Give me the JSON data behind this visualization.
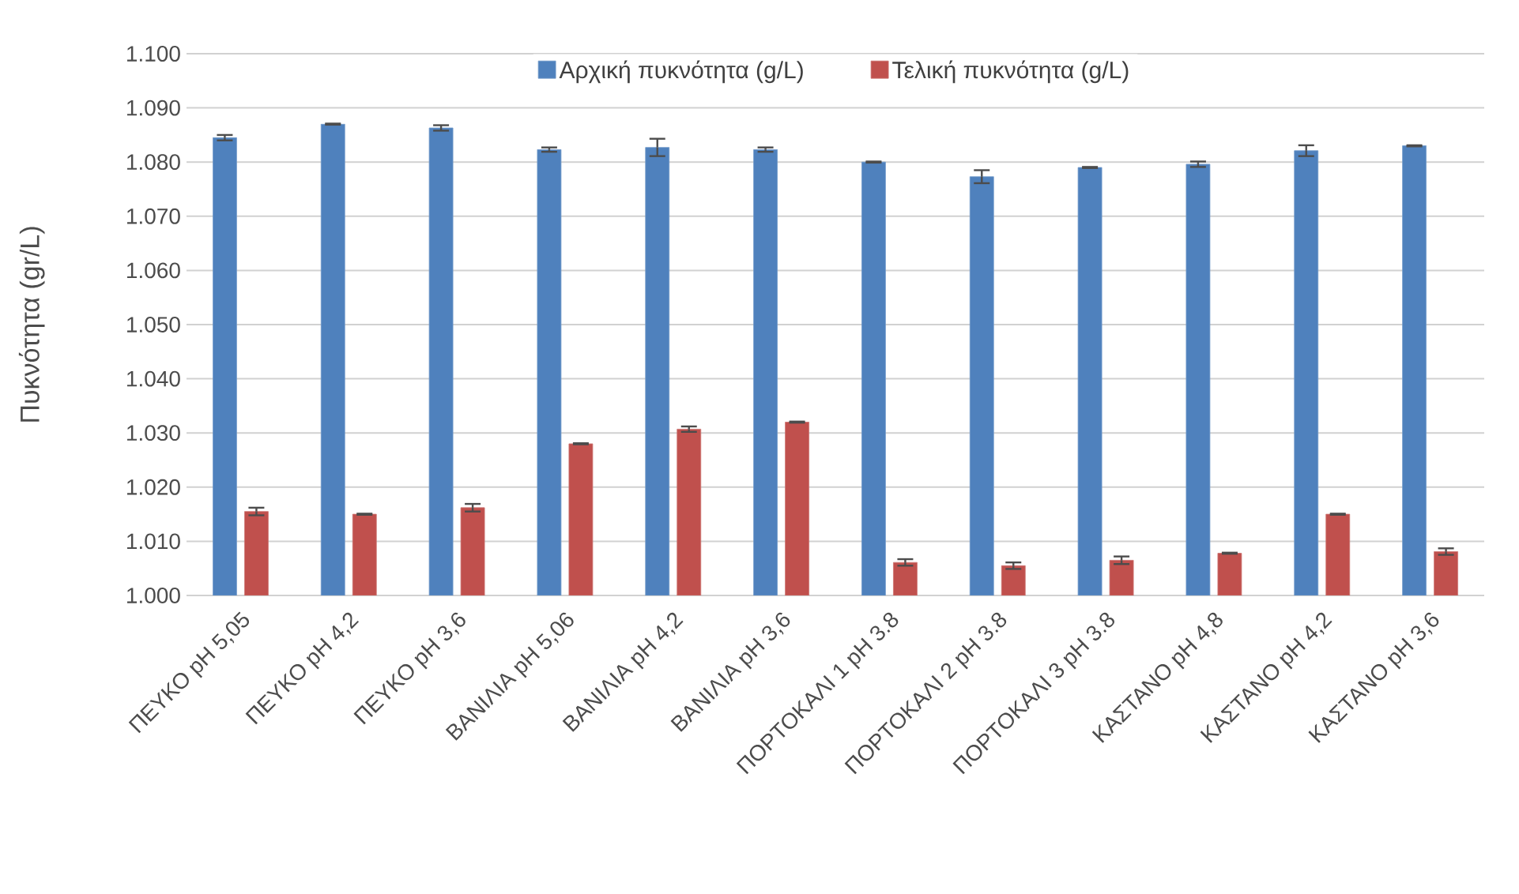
{
  "chart_data": {
    "type": "bar",
    "ylabel": "Πυκνότητα (gr/L)",
    "categories": [
      "ΠΕΥΚΟ pH 5,05",
      "ΠΕΥΚΟ pH 4,2",
      "ΠΕΥΚΟ pH 3,6",
      "ΒΑΝΙΛΙΑ pH 5,06",
      "ΒΑΝΙΛΙΑ pH 4,2",
      "ΒΑΝΙΛΙΑ pH 3,6",
      "ΠΟΡΤΟΚΑΛΙ 1 pH 3.8",
      "ΠΟΡΤΟΚΑΛΙ 2 pH 3.8",
      "ΠΟΡΤΟΚΑΛΙ 3 pH 3.8",
      "ΚΑΣΤΑΝΟ pH 4,8",
      "ΚΑΣΤΑΝΟ pH 4,2",
      "ΚΑΣΤΑΝΟ pH 3,6"
    ],
    "series": [
      {
        "name": "Αρχική πυκνότητα (g/L)",
        "color": "#4f81bd",
        "values": [
          1084.5,
          1087,
          1086.3,
          1082.3,
          1082.7,
          1082.3,
          1080,
          1077.3,
          1079,
          1079.6,
          1082.1,
          1083
        ],
        "errors": [
          0.5,
          0.1,
          0.5,
          0.4,
          1.6,
          0.4,
          0.1,
          1.2,
          0.1,
          0.5,
          1.0,
          0.1
        ]
      },
      {
        "name": "Τελική πυκνότητα (g/L)",
        "color": "#c0504d",
        "values": [
          1015.5,
          1015,
          1016.2,
          1028,
          1030.7,
          1032,
          1006.1,
          1005.5,
          1006.5,
          1007.8,
          1015,
          1008.1
        ],
        "errors": [
          0.7,
          0.1,
          0.7,
          0.1,
          0.5,
          0.1,
          0.6,
          0.6,
          0.7,
          0.1,
          0.1,
          0.6
        ]
      }
    ],
    "ylim": [
      1000,
      1100
    ],
    "yticks": [
      {
        "value": 1000,
        "label": "1.000"
      },
      {
        "value": 1010,
        "label": "1.010"
      },
      {
        "value": 1020,
        "label": "1.020"
      },
      {
        "value": 1030,
        "label": "1.030"
      },
      {
        "value": 1040,
        "label": "1.040"
      },
      {
        "value": 1050,
        "label": "1.050"
      },
      {
        "value": 1060,
        "label": "1.060"
      },
      {
        "value": 1070,
        "label": "1.070"
      },
      {
        "value": 1080,
        "label": "1.080"
      },
      {
        "value": 1090,
        "label": "1.090"
      },
      {
        "value": 1100,
        "label": "1.100"
      }
    ],
    "grid": "y",
    "legend": "top"
  }
}
